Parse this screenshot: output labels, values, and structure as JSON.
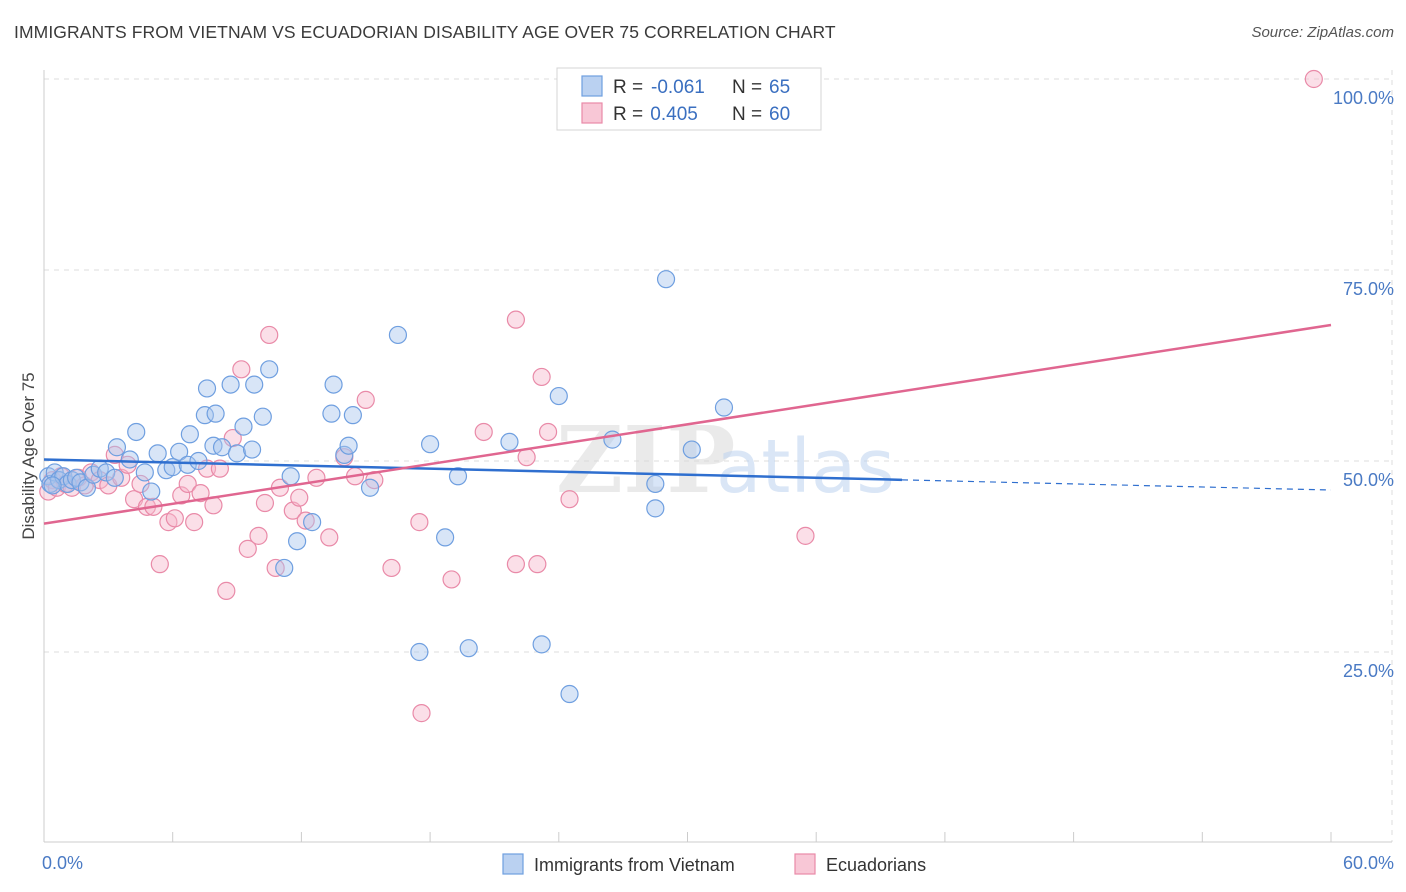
{
  "title": "IMMIGRANTS FROM VIETNAM VS ECUADORIAN DISABILITY AGE OVER 75 CORRELATION CHART",
  "source": "Source: ZipAtlas.com",
  "watermark": {
    "zip": "ZIP",
    "atlas": "atlas"
  },
  "colors": {
    "blue_fill": "#a9c6ee",
    "blue_stroke": "#6f9fe0",
    "blue_line": "#2f6fcf",
    "pink_fill": "#f6b9cc",
    "pink_stroke": "#e98aa8",
    "pink_line": "#e06690",
    "tick_text": "#4a7ac4",
    "grid": "#dddddd"
  },
  "legend": {
    "rows": [
      {
        "r_label": "R = ",
        "r_value": "-0.061",
        "n_label": "N = ",
        "n_value": "65"
      },
      {
        "r_label": "R = ",
        "r_value": " 0.405",
        "n_label": "N = ",
        "n_value": "60"
      }
    ]
  },
  "chart_data": {
    "type": "scatter",
    "xlabel": "",
    "ylabel": "Disability Age Over 75",
    "xlim": [
      0,
      60
    ],
    "ylim": [
      0,
      105
    ],
    "x_tick_labels": [
      {
        "value": 0,
        "label": "0.0%"
      },
      {
        "value": 60,
        "label": "60.0%"
      }
    ],
    "y_tick_labels": [
      {
        "value": 25,
        "label": "25.0%"
      },
      {
        "value": 50,
        "label": "50.0%"
      },
      {
        "value": 75,
        "label": "75.0%"
      },
      {
        "value": 100,
        "label": "100.0%"
      }
    ],
    "grid": true,
    "legend_position": "top-center",
    "series": [
      {
        "name": "Immigrants from Vietnam",
        "color": "#a9c6ee",
        "trend": {
          "x": [
            0,
            40,
            60
          ],
          "y": [
            50.2,
            47.5,
            46.2
          ],
          "solid_until": 40
        },
        "points": [
          [
            0.2,
            48.0
          ],
          [
            0.3,
            47.0
          ],
          [
            0.5,
            48.5
          ],
          [
            0.7,
            47.5
          ],
          [
            0.9,
            48.0
          ],
          [
            1.1,
            47.0
          ],
          [
            1.3,
            47.5
          ],
          [
            1.5,
            47.8
          ],
          [
            1.7,
            47.2
          ],
          [
            2.0,
            46.5
          ],
          [
            2.3,
            48.2
          ],
          [
            2.6,
            49.0
          ],
          [
            2.9,
            48.5
          ],
          [
            3.3,
            47.8
          ],
          [
            3.4,
            51.8
          ],
          [
            4.0,
            50.2
          ],
          [
            4.3,
            53.8
          ],
          [
            4.7,
            48.5
          ],
          [
            5.0,
            46.0
          ],
          [
            5.3,
            51.0
          ],
          [
            5.7,
            48.8
          ],
          [
            6.0,
            49.2
          ],
          [
            6.3,
            51.2
          ],
          [
            6.7,
            49.5
          ],
          [
            6.8,
            53.5
          ],
          [
            7.2,
            50.0
          ],
          [
            7.5,
            56.0
          ],
          [
            7.6,
            59.5
          ],
          [
            7.9,
            52.0
          ],
          [
            8.0,
            56.2
          ],
          [
            8.3,
            51.8
          ],
          [
            8.7,
            60.0
          ],
          [
            9.0,
            51.0
          ],
          [
            9.3,
            54.5
          ],
          [
            9.7,
            51.5
          ],
          [
            9.8,
            60.0
          ],
          [
            10.2,
            55.8
          ],
          [
            10.5,
            62.0
          ],
          [
            11.2,
            36.0
          ],
          [
            11.5,
            48.0
          ],
          [
            11.8,
            39.5
          ],
          [
            12.5,
            42.0
          ],
          [
            13.4,
            56.2
          ],
          [
            13.5,
            60.0
          ],
          [
            14.0,
            50.8
          ],
          [
            14.2,
            52.0
          ],
          [
            14.4,
            56.0
          ],
          [
            15.2,
            46.5
          ],
          [
            16.5,
            66.5
          ],
          [
            17.5,
            25.0
          ],
          [
            18.0,
            52.2
          ],
          [
            18.7,
            40.0
          ],
          [
            19.3,
            48.0
          ],
          [
            19.8,
            25.5
          ],
          [
            21.7,
            52.5
          ],
          [
            23.2,
            26.0
          ],
          [
            24.0,
            58.5
          ],
          [
            24.5,
            19.5
          ],
          [
            26.5,
            52.8
          ],
          [
            28.5,
            47.0
          ],
          [
            28.5,
            43.8
          ],
          [
            29.0,
            73.8
          ],
          [
            30.2,
            51.5
          ],
          [
            31.7,
            57.0
          ],
          [
            0.4,
            46.8
          ]
        ]
      },
      {
        "name": "Ecuadorians",
        "color": "#f6b9cc",
        "trend": {
          "x": [
            0,
            60
          ],
          "y": [
            41.8,
            67.8
          ]
        },
        "points": [
          [
            0.2,
            46.0
          ],
          [
            0.4,
            47.5
          ],
          [
            0.6,
            46.5
          ],
          [
            0.8,
            48.0
          ],
          [
            1.0,
            47.0
          ],
          [
            1.3,
            46.5
          ],
          [
            1.6,
            47.8
          ],
          [
            1.9,
            46.8
          ],
          [
            2.2,
            48.5
          ],
          [
            2.6,
            47.5
          ],
          [
            3.0,
            46.8
          ],
          [
            3.3,
            50.8
          ],
          [
            3.6,
            47.8
          ],
          [
            3.9,
            49.5
          ],
          [
            4.2,
            45.0
          ],
          [
            4.5,
            47.0
          ],
          [
            4.8,
            44.0
          ],
          [
            5.1,
            44.0
          ],
          [
            5.4,
            36.5
          ],
          [
            5.8,
            42.0
          ],
          [
            6.1,
            42.5
          ],
          [
            6.4,
            45.5
          ],
          [
            6.7,
            47.0
          ],
          [
            7.0,
            42.0
          ],
          [
            7.3,
            45.8
          ],
          [
            7.6,
            49.0
          ],
          [
            7.9,
            44.2
          ],
          [
            8.2,
            49.0
          ],
          [
            8.5,
            33.0
          ],
          [
            8.8,
            53.0
          ],
          [
            9.2,
            62.0
          ],
          [
            9.5,
            38.5
          ],
          [
            10.0,
            40.2
          ],
          [
            10.3,
            44.5
          ],
          [
            10.5,
            66.5
          ],
          [
            10.8,
            36.0
          ],
          [
            11.0,
            46.5
          ],
          [
            11.6,
            43.5
          ],
          [
            11.9,
            45.2
          ],
          [
            12.2,
            42.2
          ],
          [
            12.7,
            47.8
          ],
          [
            13.3,
            40.0
          ],
          [
            14.0,
            50.5
          ],
          [
            14.5,
            48.0
          ],
          [
            15.0,
            58.0
          ],
          [
            15.4,
            47.5
          ],
          [
            16.2,
            36.0
          ],
          [
            17.5,
            42.0
          ],
          [
            17.6,
            17.0
          ],
          [
            19.0,
            34.5
          ],
          [
            20.5,
            53.8
          ],
          [
            22.0,
            68.5
          ],
          [
            22.0,
            36.5
          ],
          [
            22.5,
            50.5
          ],
          [
            23.0,
            36.5
          ],
          [
            23.5,
            53.8
          ],
          [
            24.5,
            45.0
          ],
          [
            23.2,
            61.0
          ],
          [
            35.5,
            40.2
          ],
          [
            59.2,
            100.0
          ]
        ]
      }
    ]
  },
  "bottom_legend": [
    {
      "label": "Immigrants from Vietnam"
    },
    {
      "label": "Ecuadorians"
    }
  ]
}
